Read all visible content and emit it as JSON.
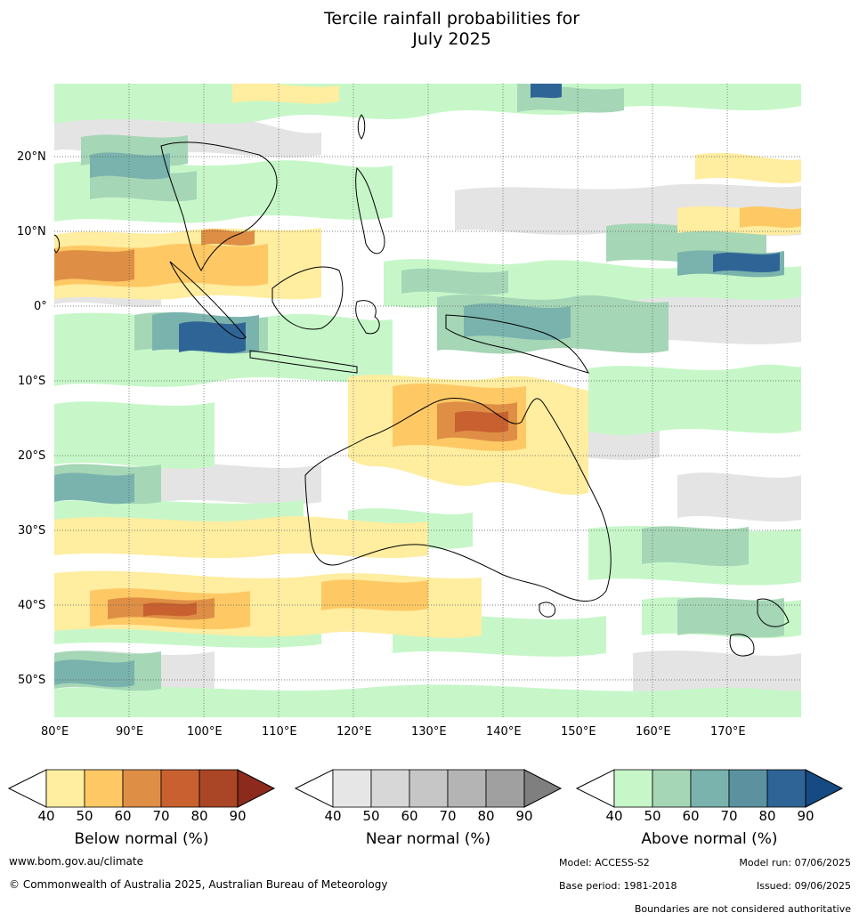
{
  "title": {
    "line1": "Tercile rainfall probabilities for",
    "line2": "July 2025"
  },
  "map": {
    "lon_labels": [
      "80°E",
      "90°E",
      "100°E",
      "110°E",
      "120°E",
      "130°E",
      "140°E",
      "150°E",
      "160°E",
      "170°E"
    ],
    "lat_labels": [
      "20°N",
      "10°N",
      "0°",
      "10°S",
      "20°S",
      "30°S",
      "40°S",
      "50°S"
    ],
    "gridlines": "dotted"
  },
  "legends": [
    {
      "id": "below",
      "title": "Below normal (%)",
      "ticks": [
        "40",
        "50",
        "60",
        "70",
        "80",
        "90"
      ],
      "colors": [
        "#ffeda0",
        "#fec965",
        "#df8f45",
        "#c8612f",
        "#aa4626",
        "#8c2a1d"
      ]
    },
    {
      "id": "near",
      "title": "Near normal (%)",
      "ticks": [
        "40",
        "50",
        "60",
        "70",
        "80",
        "90"
      ],
      "colors": [
        "#e6e6e6",
        "#d7d7d7",
        "#c6c6c6",
        "#b4b4b4",
        "#a0a0a0",
        "#7f7f7f"
      ]
    },
    {
      "id": "above",
      "title": "Above normal (%)",
      "ticks": [
        "40",
        "50",
        "60",
        "70",
        "80",
        "90"
      ],
      "colors": [
        "#c7f7c9",
        "#a5d6b6",
        "#7ab3ad",
        "#5c92a0",
        "#2f6596",
        "#154a82"
      ]
    }
  ],
  "footer": {
    "website": "www.bom.gov.au/climate",
    "copyright": "© Commonwealth of Australia 2025, Australian Bureau of Meteorology",
    "model": "Model: ACCESS-S2",
    "model_run": "Model run: 07/06/2025",
    "base_period": "Base period: 1981-2018",
    "issued": "Issued: 09/06/2025",
    "disclaimer": "Boundaries are not considered authoritative"
  },
  "colors": {
    "land_outline": "#000000",
    "near_fill": "#e4e4e4",
    "above_fill": "#c7f7c9",
    "below_fill": "#ffeda0"
  }
}
